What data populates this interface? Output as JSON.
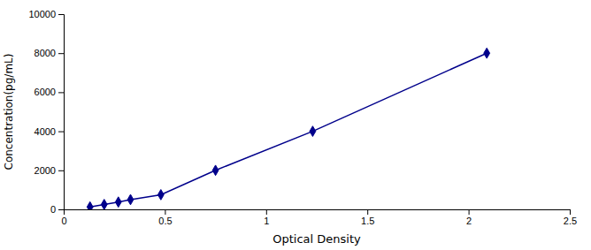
{
  "chart_data": {
    "type": "line",
    "x": [
      0.13,
      0.2,
      0.27,
      0.33,
      0.48,
      0.75,
      1.23,
      2.09
    ],
    "values": [
      125,
      250,
      375,
      500,
      750,
      2000,
      4000,
      8000
    ],
    "color": "#00008B",
    "marker": "diamond",
    "line_style": "solid",
    "xlabel": "Optical Density",
    "ylabel": "Concentration(pg/mL)",
    "xlim": [
      0,
      2.5
    ],
    "ylim": [
      0,
      10000
    ],
    "xticks": [
      0,
      0.5,
      1,
      1.5,
      2,
      2.5
    ],
    "yticks": [
      0,
      2000,
      4000,
      6000,
      8000,
      10000
    ],
    "grid": false
  }
}
